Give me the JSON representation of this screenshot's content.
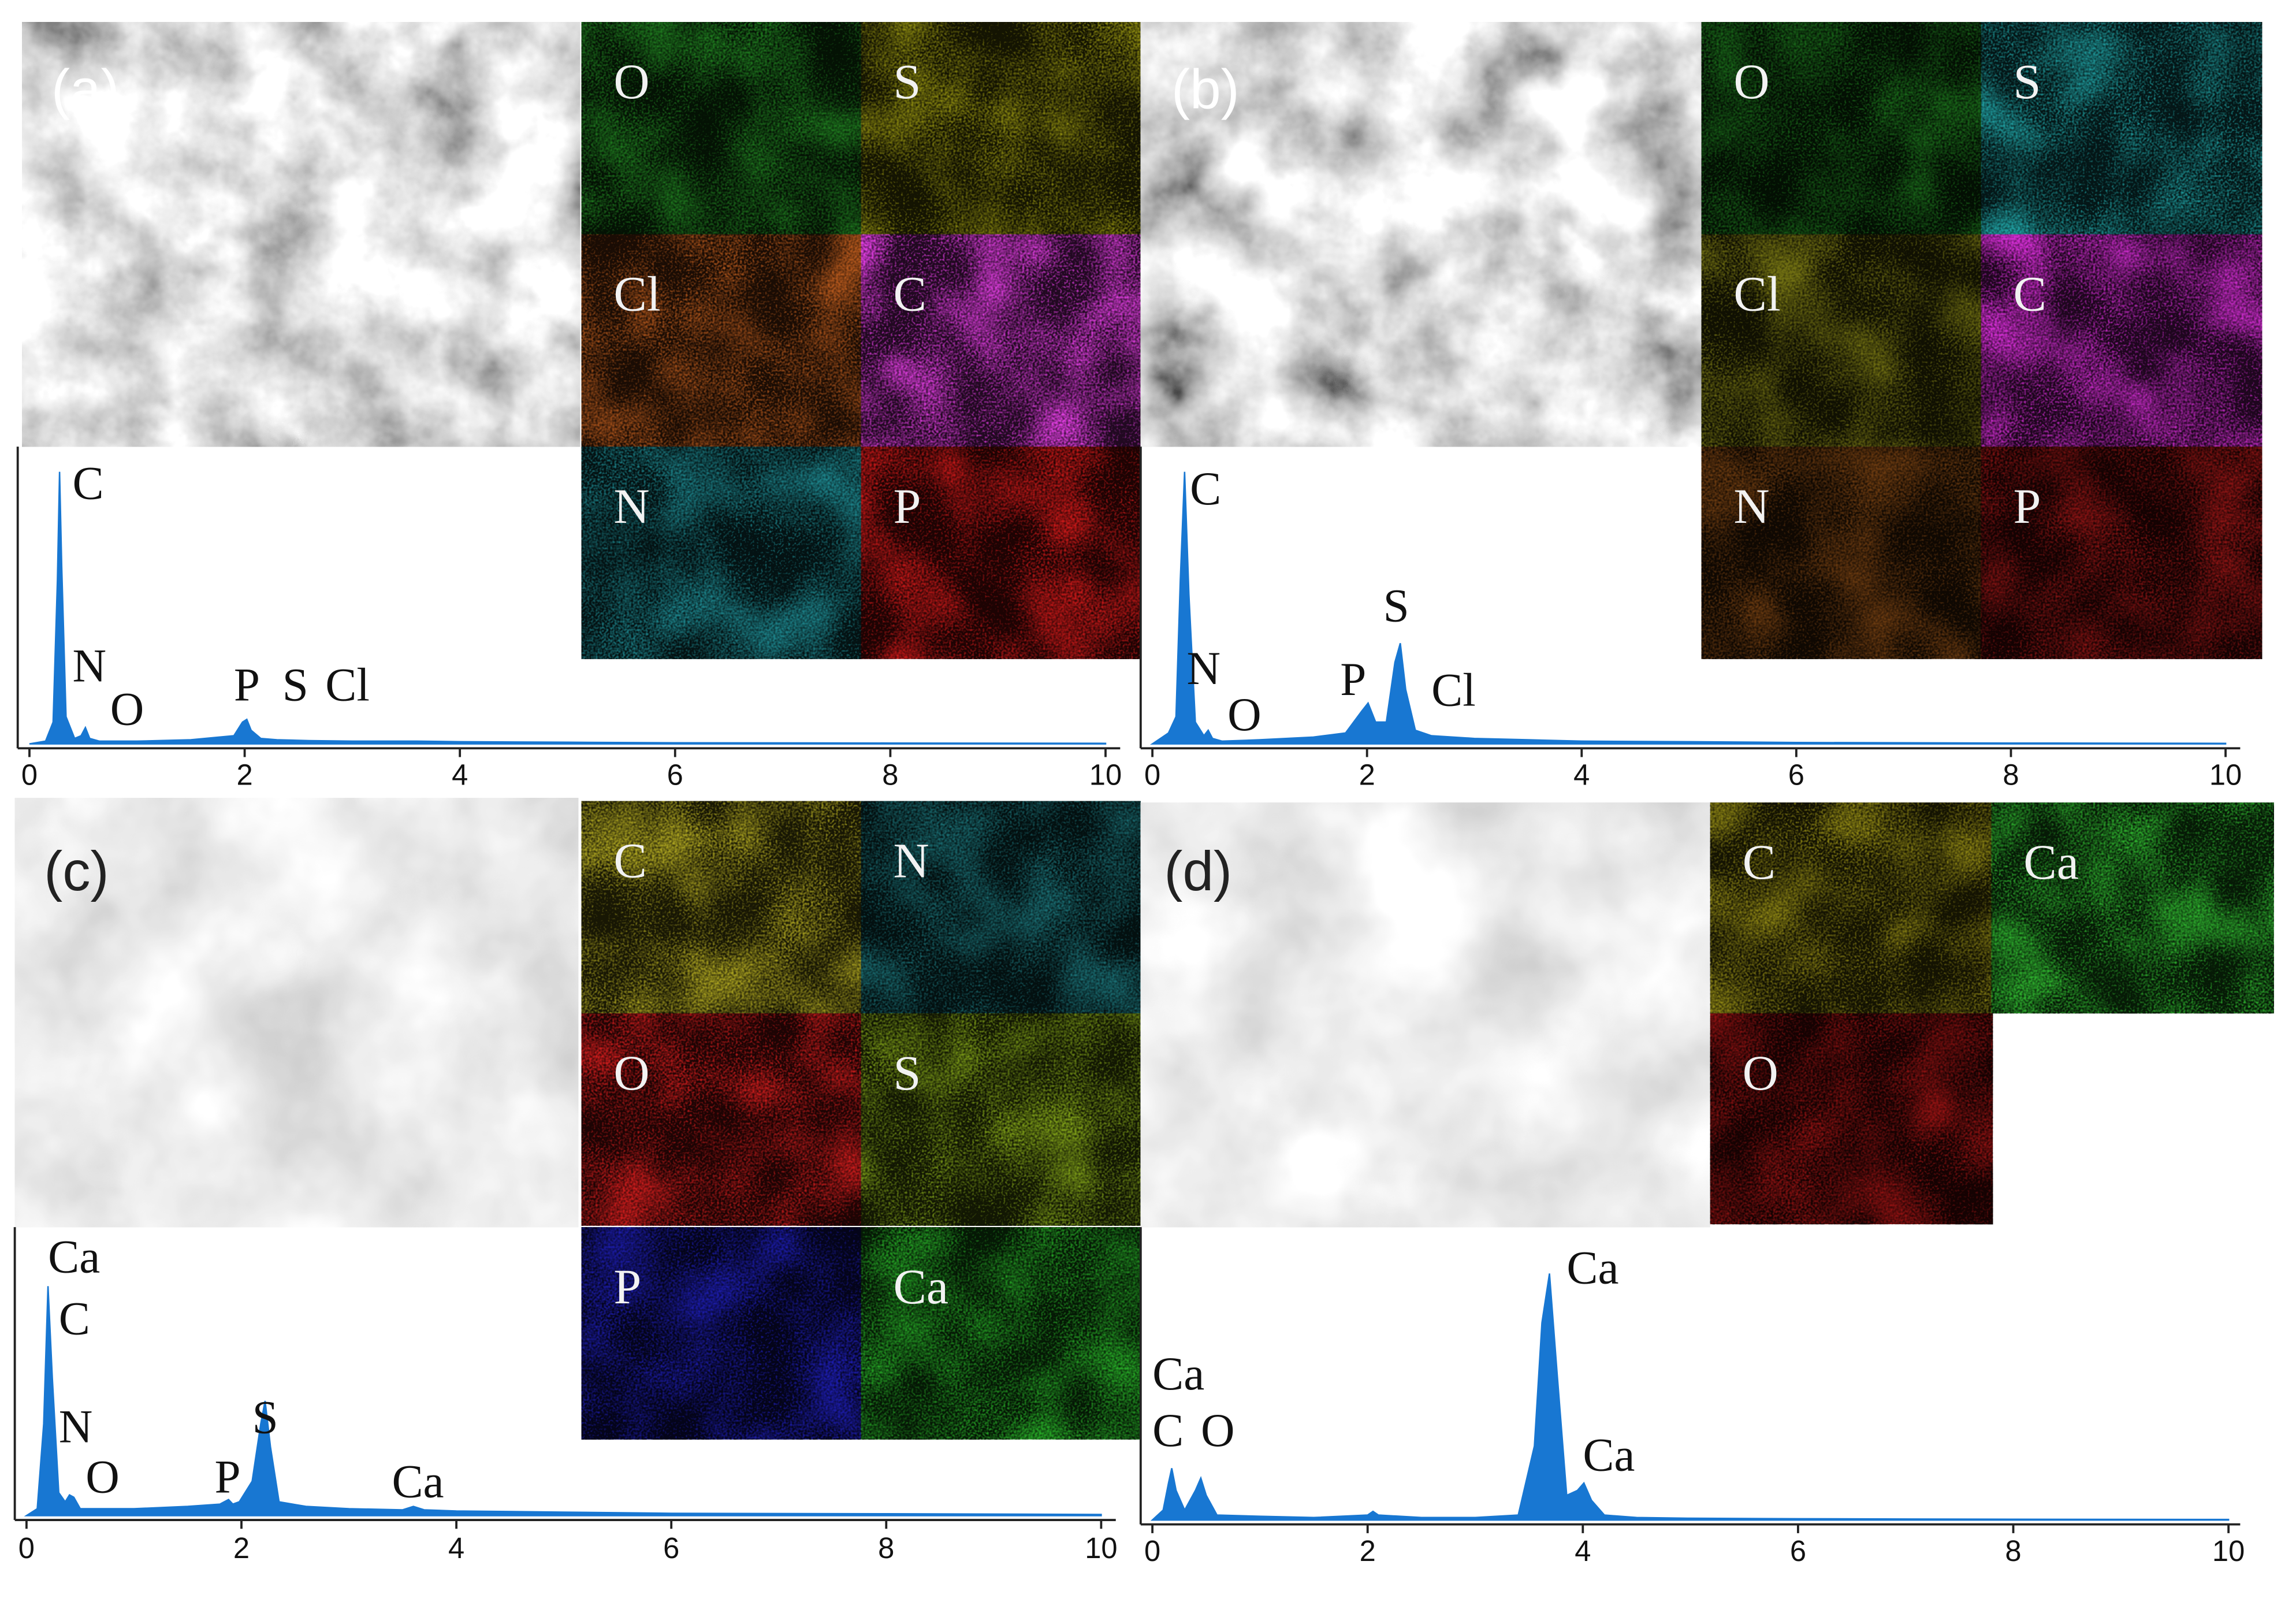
{
  "panels": [
    {
      "label": "(a)",
      "maps": [
        {
          "label": "O",
          "color": "#1f7a1f"
        },
        {
          "label": "S",
          "color": "#8c8a10"
        },
        {
          "label": "Cl",
          "color": "#b0561c"
        },
        {
          "label": "C",
          "color": "#e03ee0"
        },
        {
          "label": "N",
          "color": "#1c7f86"
        },
        {
          "label": "P",
          "color": "#c41818"
        }
      ]
    },
    {
      "label": "(b)",
      "maps": [
        {
          "label": "O",
          "color": "#1a6a1a"
        },
        {
          "label": "S",
          "color": "#1f9a9c"
        },
        {
          "label": "Cl",
          "color": "#6e6d12"
        },
        {
          "label": "C",
          "color": "#cc2ccc"
        },
        {
          "label": "N",
          "color": "#6a3a10"
        },
        {
          "label": "P",
          "color": "#8c1414"
        }
      ]
    },
    {
      "label": "(c)",
      "maps": [
        {
          "label": "C",
          "color": "#a8a020"
        },
        {
          "label": "N",
          "color": "#1a6d72"
        },
        {
          "label": "O",
          "color": "#c81c1c"
        },
        {
          "label": "S",
          "color": "#7c9c18"
        },
        {
          "label": "P",
          "color": "#1c1caa"
        },
        {
          "label": "Ca",
          "color": "#26a626"
        }
      ]
    },
    {
      "label": "(d)",
      "maps": [
        {
          "label": "C",
          "color": "#8c8414"
        },
        {
          "label": "Ca",
          "color": "#2eb02e"
        },
        {
          "label": "O",
          "color": "#901212"
        }
      ]
    }
  ],
  "chart_data": [
    {
      "type": "area",
      "color": "#1877d2",
      "xlim": [
        0,
        10
      ],
      "xticks": [
        0,
        2,
        4,
        6,
        8,
        10
      ],
      "ylim": [
        0,
        120
      ],
      "x": [
        0,
        0.15,
        0.22,
        0.26,
        0.28,
        0.3,
        0.34,
        0.42,
        0.48,
        0.52,
        0.56,
        0.65,
        1.0,
        1.5,
        1.9,
        1.98,
        2.02,
        2.06,
        2.15,
        2.3,
        2.6,
        3.0,
        3.6,
        4.0,
        5,
        6,
        8,
        10
      ],
      "values": [
        0,
        1,
        8,
        60,
        100,
        65,
        10,
        2,
        3,
        6,
        2,
        1,
        1,
        1.5,
        3,
        8,
        9,
        5,
        2,
        1.5,
        1.2,
        1,
        1,
        0.8,
        0.6,
        0.4,
        0.3,
        0.2
      ],
      "annotations": [
        {
          "text": "C",
          "x": 0.4,
          "y": 90
        },
        {
          "text": "N",
          "x": 0.4,
          "y": 23
        },
        {
          "text": "O",
          "x": 0.75,
          "y": 7
        },
        {
          "text": "P",
          "x": 1.9,
          "y": 16
        },
        {
          "text": "S",
          "x": 2.35,
          "y": 16
        },
        {
          "text": "Cl",
          "x": 2.75,
          "y": 16
        }
      ]
    },
    {
      "type": "area",
      "color": "#1877d2",
      "xlim": [
        0,
        10
      ],
      "xticks": [
        0,
        2,
        4,
        6,
        8,
        10
      ],
      "ylim": [
        0,
        120
      ],
      "x": [
        0,
        0.15,
        0.22,
        0.26,
        0.3,
        0.34,
        0.4,
        0.48,
        0.52,
        0.56,
        0.65,
        1.0,
        1.5,
        1.8,
        1.95,
        2.01,
        2.08,
        2.18,
        2.26,
        2.31,
        2.36,
        2.45,
        2.6,
        2.8,
        3.0,
        3.5,
        4.0,
        5,
        6,
        8,
        10
      ],
      "values": [
        0,
        4,
        10,
        60,
        100,
        55,
        8,
        3,
        5,
        2,
        1,
        1.5,
        2.5,
        4,
        12,
        15,
        8,
        8,
        30,
        37,
        20,
        5,
        3,
        2.5,
        2,
        1.5,
        1,
        0.8,
        0.5,
        0.3,
        0.2
      ],
      "annotations": [
        {
          "text": "C",
          "x": 0.35,
          "y": 88
        },
        {
          "text": "N",
          "x": 0.32,
          "y": 22
        },
        {
          "text": "O",
          "x": 0.7,
          "y": 5
        },
        {
          "text": "P",
          "x": 1.75,
          "y": 18
        },
        {
          "text": "S",
          "x": 2.15,
          "y": 45
        },
        {
          "text": "Cl",
          "x": 2.6,
          "y": 14
        }
      ]
    },
    {
      "type": "area",
      "color": "#1877d2",
      "xlim": [
        0,
        10
      ],
      "xticks": [
        0,
        2,
        4,
        6,
        8,
        10
      ],
      "ylim": [
        0,
        120
      ],
      "x": [
        0,
        0.1,
        0.16,
        0.2,
        0.24,
        0.3,
        0.36,
        0.4,
        0.44,
        0.5,
        0.7,
        1.0,
        1.5,
        1.8,
        1.88,
        1.92,
        1.98,
        2.1,
        2.18,
        2.22,
        2.27,
        2.35,
        2.6,
        3.0,
        3.5,
        3.6,
        3.7,
        4.0,
        5,
        6,
        8,
        10
      ],
      "values": [
        0,
        3,
        40,
        100,
        60,
        10,
        6,
        9,
        8,
        3,
        3,
        3,
        4,
        5,
        7,
        5,
        6,
        15,
        40,
        50,
        30,
        6,
        4,
        3,
        2.5,
        4,
        2.5,
        2,
        1.5,
        1,
        0.8,
        0.5
      ],
      "annotations": [
        {
          "text": "Ca",
          "x": 0.2,
          "y": 106
        },
        {
          "text": "C",
          "x": 0.3,
          "y": 79
        },
        {
          "text": "N",
          "x": 0.3,
          "y": 32
        },
        {
          "text": "O",
          "x": 0.55,
          "y": 10
        },
        {
          "text": "P",
          "x": 1.75,
          "y": 10
        },
        {
          "text": "S",
          "x": 2.1,
          "y": 36
        },
        {
          "text": "Ca",
          "x": 3.4,
          "y": 8
        }
      ]
    },
    {
      "type": "area",
      "color": "#1877d2",
      "xlim": [
        0,
        10
      ],
      "xticks": [
        0,
        2,
        4,
        6,
        8,
        10
      ],
      "ylim": [
        0,
        120
      ],
      "x": [
        0,
        0.1,
        0.15,
        0.18,
        0.22,
        0.3,
        0.4,
        0.45,
        0.5,
        0.6,
        1.0,
        1.5,
        2.0,
        2.05,
        2.1,
        2.5,
        3.0,
        3.4,
        3.55,
        3.62,
        3.69,
        3.76,
        3.85,
        3.95,
        4.01,
        4.08,
        4.2,
        4.5,
        5,
        6,
        8,
        10
      ],
      "values": [
        0,
        4,
        15,
        21,
        12,
        4,
        12,
        17,
        10,
        2,
        1.5,
        1,
        2,
        3.5,
        2,
        1,
        1,
        2,
        30,
        80,
        100,
        60,
        10,
        12,
        15,
        8,
        2,
        1,
        0.7,
        0.5,
        0.3,
        0.2
      ],
      "annotations": [
        {
          "text": "Ca",
          "x": 0.0,
          "y": 53
        },
        {
          "text": "C",
          "x": 0.0,
          "y": 30
        },
        {
          "text": "O",
          "x": 0.45,
          "y": 30
        },
        {
          "text": "Ca",
          "x": 3.85,
          "y": 96
        },
        {
          "text": "Ca",
          "x": 4.0,
          "y": 20
        }
      ]
    }
  ]
}
